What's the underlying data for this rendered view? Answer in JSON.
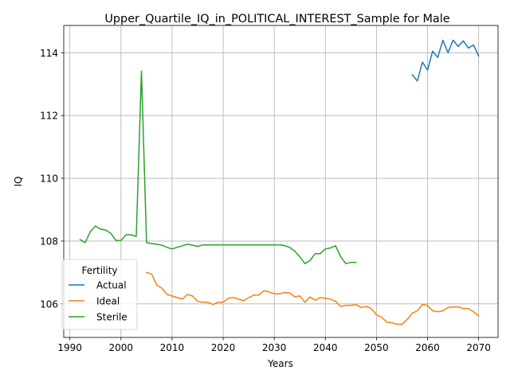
{
  "chart_data": {
    "type": "line",
    "title": "Upper_Quartile_IQ_in_POLITICAL_INTEREST_Sample for Male",
    "xlabel": "Years",
    "ylabel": "IQ",
    "xlim": [
      1988.8,
      2073.8
    ],
    "ylim": [
      104.93,
      114.87
    ],
    "xticks": [
      1990,
      2000,
      2010,
      2020,
      2030,
      2040,
      2050,
      2060,
      2070
    ],
    "yticks": [
      106,
      108,
      110,
      112,
      114
    ],
    "grid": true,
    "legend": {
      "title": "Fertility",
      "placement": "lower-left"
    },
    "series": [
      {
        "name": "Actual",
        "color": "#1f77b4",
        "x": [
          2057,
          2058,
          2059,
          2060,
          2061,
          2062,
          2063,
          2064,
          2065,
          2066,
          2067,
          2068,
          2069,
          2070
        ],
        "y": [
          113.3,
          113.1,
          113.7,
          113.45,
          114.05,
          113.85,
          114.4,
          114.0,
          114.4,
          114.2,
          114.38,
          114.15,
          114.25,
          113.9
        ]
      },
      {
        "name": "Ideal",
        "color": "#ff7f0e",
        "x": [
          2005,
          2006,
          2007,
          2008,
          2009,
          2010,
          2011,
          2012,
          2013,
          2014,
          2015,
          2016,
          2017,
          2018,
          2019,
          2020,
          2021,
          2022,
          2023,
          2024,
          2025,
          2026,
          2027,
          2028,
          2029,
          2030,
          2031,
          2032,
          2033,
          2034,
          2035,
          2036,
          2037,
          2038,
          2039,
          2040,
          2041,
          2042,
          2043,
          2044,
          2045,
          2046,
          2047,
          2048,
          2049,
          2050,
          2051,
          2052,
          2053,
          2054,
          2055,
          2056,
          2057,
          2058,
          2059,
          2060,
          2061,
          2062,
          2063,
          2064,
          2065,
          2066,
          2067,
          2068,
          2069,
          2070
        ],
        "y": [
          107.0,
          106.95,
          106.6,
          106.5,
          106.3,
          106.25,
          106.2,
          106.15,
          106.3,
          106.25,
          106.08,
          106.05,
          106.05,
          105.98,
          106.05,
          106.05,
          106.18,
          106.2,
          106.15,
          106.1,
          106.2,
          106.28,
          106.28,
          106.42,
          106.38,
          106.32,
          106.32,
          106.36,
          106.35,
          106.22,
          106.25,
          106.05,
          106.22,
          106.12,
          106.2,
          106.18,
          106.15,
          106.08,
          105.92,
          105.95,
          105.95,
          105.98,
          105.88,
          105.92,
          105.85,
          105.65,
          105.58,
          105.42,
          105.4,
          105.35,
          105.35,
          105.5,
          105.7,
          105.78,
          105.98,
          105.95,
          105.78,
          105.75,
          105.78,
          105.88,
          105.9,
          105.9,
          105.85,
          105.85,
          105.75,
          105.62
        ]
      },
      {
        "name": "Sterile",
        "color": "#2ca02c",
        "x": [
          1992,
          1993,
          1994,
          1995,
          1996,
          1997,
          1998,
          1999,
          2000,
          2001,
          2002,
          2003,
          2004,
          2005,
          2006,
          2007,
          2008,
          2009,
          2010,
          2011,
          2012,
          2013,
          2014,
          2015,
          2016,
          2017,
          2018,
          2019,
          2020,
          2021,
          2022,
          2023,
          2024,
          2025,
          2026,
          2027,
          2028,
          2029,
          2030,
          2031,
          2032,
          2033,
          2034,
          2035,
          2036,
          2037,
          2038,
          2039,
          2040,
          2041,
          2042,
          2043,
          2044,
          2045,
          2046
        ],
        "y": [
          108.05,
          107.95,
          108.3,
          108.48,
          108.38,
          108.35,
          108.25,
          108.02,
          108.02,
          108.2,
          108.2,
          108.15,
          113.42,
          107.95,
          107.92,
          107.9,
          107.87,
          107.8,
          107.75,
          107.8,
          107.85,
          107.9,
          107.87,
          107.83,
          107.88,
          107.88,
          107.88,
          107.88,
          107.88,
          107.88,
          107.88,
          107.88,
          107.88,
          107.88,
          107.88,
          107.88,
          107.88,
          107.88,
          107.88,
          107.88,
          107.86,
          107.8,
          107.68,
          107.5,
          107.28,
          107.38,
          107.6,
          107.6,
          107.75,
          107.78,
          107.85,
          107.5,
          107.28,
          107.32,
          107.32
        ]
      }
    ]
  }
}
